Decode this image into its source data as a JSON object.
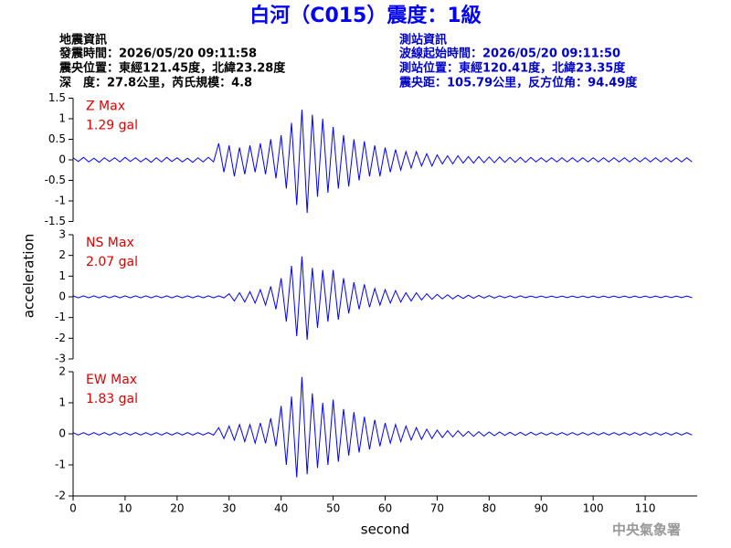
{
  "header": {
    "title": "白河（C015）震度：1級",
    "left": [
      "地震資訊",
      "發震時間：2026/05/20 09:11:58",
      "震央位置：東經121.45度，北緯23.28度",
      "深　度：27.8公里，芮氏規模：4.8"
    ],
    "right": [
      "測站資訊",
      "波線起始時間：2026/05/20 09:11:50",
      "測站位置：東經120.41度，北緯23.35度",
      "震央距：105.79公里，反方位角：94.49度"
    ],
    "footer": "中央氣象署"
  },
  "chart_data": [
    {
      "type": "line",
      "color": "#0000ff",
      "annotations": [
        "Z Max",
        "1.29 gal"
      ],
      "annotation_color": "#e00000",
      "xlim": [
        0,
        120
      ],
      "ylim": [
        -1.5,
        1.5
      ],
      "yticks": [
        -1.5,
        -1,
        -0.5,
        0,
        0.5,
        1,
        1.5
      ],
      "x": [
        0,
        1,
        2,
        3,
        4,
        5,
        6,
        7,
        8,
        9,
        10,
        11,
        12,
        13,
        14,
        15,
        16,
        17,
        18,
        19,
        20,
        21,
        22,
        23,
        24,
        25,
        26,
        27,
        28,
        29,
        30,
        31,
        32,
        33,
        34,
        35,
        36,
        37,
        38,
        39,
        40,
        41,
        42,
        43,
        44,
        45,
        46,
        47,
        48,
        49,
        50,
        51,
        52,
        53,
        54,
        55,
        56,
        57,
        58,
        59,
        60,
        61,
        62,
        63,
        64,
        65,
        66,
        67,
        68,
        69,
        70,
        71,
        72,
        73,
        74,
        75,
        76,
        77,
        78,
        79,
        80,
        81,
        82,
        83,
        84,
        85,
        86,
        87,
        88,
        89,
        90,
        91,
        92,
        93,
        94,
        95,
        96,
        97,
        98,
        99,
        100,
        101,
        102,
        103,
        104,
        105,
        106,
        107,
        108,
        109,
        110,
        111,
        112,
        113,
        114,
        115,
        116,
        117,
        118,
        119
      ],
      "values": [
        0.05,
        -0.04,
        0.06,
        -0.05,
        0.04,
        -0.06,
        0.05,
        -0.04,
        0.05,
        -0.05,
        0.06,
        -0.04,
        0.05,
        -0.05,
        0.04,
        -0.06,
        0.05,
        -0.05,
        0.06,
        -0.04,
        0.05,
        -0.05,
        0.04,
        -0.06,
        0.05,
        -0.05,
        0.06,
        -0.05,
        0.4,
        -0.3,
        0.35,
        -0.4,
        0.3,
        -0.35,
        0.35,
        -0.3,
        0.4,
        -0.35,
        0.5,
        -0.45,
        0.6,
        -0.7,
        0.9,
        -1.1,
        1.22,
        -1.29,
        1.1,
        -0.9,
        1.0,
        -0.8,
        0.8,
        -0.7,
        0.6,
        -0.65,
        0.5,
        -0.5,
        0.45,
        -0.4,
        0.35,
        -0.4,
        0.3,
        -0.3,
        0.25,
        -0.25,
        0.2,
        -0.2,
        0.2,
        -0.15,
        0.15,
        -0.15,
        0.12,
        -0.1,
        0.1,
        -0.1,
        0.1,
        -0.08,
        0.08,
        -0.08,
        0.08,
        -0.07,
        0.07,
        -0.07,
        0.07,
        -0.06,
        0.06,
        -0.06,
        0.06,
        -0.06,
        0.06,
        -0.05,
        0.05,
        -0.05,
        0.05,
        -0.05,
        0.05,
        -0.05,
        0.05,
        -0.05,
        0.05,
        -0.05,
        0.05,
        -0.05,
        0.05,
        -0.05,
        0.05,
        -0.05,
        0.05,
        -0.05,
        0.05,
        -0.05,
        0.05,
        -0.05,
        0.05,
        -0.05,
        0.05,
        -0.05,
        0.05,
        -0.05,
        0.05,
        -0.05
      ]
    },
    {
      "type": "line",
      "color": "#0000ff",
      "annotations": [
        "NS Max",
        "2.07 gal"
      ],
      "annotation_color": "#e00000",
      "ylabel": "acceleration",
      "xlim": [
        0,
        120
      ],
      "ylim": [
        -3,
        3
      ],
      "yticks": [
        -3,
        -2,
        -1,
        0,
        1,
        2,
        3
      ],
      "x": [
        0,
        1,
        2,
        3,
        4,
        5,
        6,
        7,
        8,
        9,
        10,
        11,
        12,
        13,
        14,
        15,
        16,
        17,
        18,
        19,
        20,
        21,
        22,
        23,
        24,
        25,
        26,
        27,
        28,
        29,
        30,
        31,
        32,
        33,
        34,
        35,
        36,
        37,
        38,
        39,
        40,
        41,
        42,
        43,
        44,
        45,
        46,
        47,
        48,
        49,
        50,
        51,
        52,
        53,
        54,
        55,
        56,
        57,
        58,
        59,
        60,
        61,
        62,
        63,
        64,
        65,
        66,
        67,
        68,
        69,
        70,
        71,
        72,
        73,
        74,
        75,
        76,
        77,
        78,
        79,
        80,
        81,
        82,
        83,
        84,
        85,
        86,
        87,
        88,
        89,
        90,
        91,
        92,
        93,
        94,
        95,
        96,
        97,
        98,
        99,
        100,
        101,
        102,
        103,
        104,
        105,
        106,
        107,
        108,
        109,
        110,
        111,
        112,
        113,
        114,
        115,
        116,
        117,
        118,
        119
      ],
      "values": [
        0.05,
        -0.05,
        0.05,
        -0.05,
        0.05,
        -0.05,
        0.05,
        -0.05,
        0.05,
        -0.05,
        0.05,
        -0.05,
        0.05,
        -0.05,
        0.05,
        -0.05,
        0.05,
        -0.05,
        0.05,
        -0.05,
        0.05,
        -0.05,
        0.05,
        -0.05,
        0.05,
        -0.05,
        0.05,
        -0.05,
        0.05,
        -0.05,
        0.15,
        -0.2,
        0.2,
        -0.25,
        0.25,
        -0.3,
        0.35,
        -0.4,
        0.5,
        -0.6,
        0.9,
        -1.2,
        1.5,
        -1.9,
        1.95,
        -2.07,
        1.4,
        -1.5,
        1.3,
        -1.2,
        1.3,
        -1.1,
        0.9,
        -0.8,
        0.7,
        -0.6,
        0.6,
        -0.5,
        0.4,
        -0.4,
        0.35,
        -0.3,
        0.3,
        -0.25,
        0.2,
        -0.2,
        0.2,
        -0.15,
        0.15,
        -0.12,
        0.12,
        -0.1,
        0.1,
        -0.1,
        0.08,
        -0.08,
        0.08,
        -0.07,
        0.07,
        -0.06,
        0.06,
        -0.06,
        0.05,
        -0.05,
        0.05,
        -0.05,
        0.05,
        -0.04,
        0.04,
        -0.04,
        0.04,
        -0.04,
        0.04,
        -0.04,
        0.04,
        -0.04,
        0.04,
        -0.04,
        0.04,
        -0.04,
        0.04,
        -0.04,
        0.04,
        -0.04,
        0.04,
        -0.04,
        0.04,
        -0.04,
        0.04,
        -0.04,
        0.04,
        -0.04,
        0.04,
        -0.04,
        0.04,
        -0.04,
        0.04,
        -0.04,
        0.04,
        -0.04
      ]
    },
    {
      "type": "line",
      "color": "#0000ff",
      "annotations": [
        "EW Max",
        "1.83 gal"
      ],
      "annotation_color": "#e00000",
      "xlabel": "second",
      "xlim": [
        0,
        120
      ],
      "xticks": [
        0,
        10,
        20,
        30,
        40,
        50,
        60,
        70,
        80,
        90,
        100,
        110
      ],
      "ylim": [
        -2,
        2
      ],
      "yticks": [
        -2,
        -1,
        0,
        1,
        2
      ],
      "x": [
        0,
        1,
        2,
        3,
        4,
        5,
        6,
        7,
        8,
        9,
        10,
        11,
        12,
        13,
        14,
        15,
        16,
        17,
        18,
        19,
        20,
        21,
        22,
        23,
        24,
        25,
        26,
        27,
        28,
        29,
        30,
        31,
        32,
        33,
        34,
        35,
        36,
        37,
        38,
        39,
        40,
        41,
        42,
        43,
        44,
        45,
        46,
        47,
        48,
        49,
        50,
        51,
        52,
        53,
        54,
        55,
        56,
        57,
        58,
        59,
        60,
        61,
        62,
        63,
        64,
        65,
        66,
        67,
        68,
        69,
        70,
        71,
        72,
        73,
        74,
        75,
        76,
        77,
        78,
        79,
        80,
        81,
        82,
        83,
        84,
        85,
        86,
        87,
        88,
        89,
        90,
        91,
        92,
        93,
        94,
        95,
        96,
        97,
        98,
        99,
        100,
        101,
        102,
        103,
        104,
        105,
        106,
        107,
        108,
        109,
        110,
        111,
        112,
        113,
        114,
        115,
        116,
        117,
        118,
        119
      ],
      "values": [
        0.04,
        -0.04,
        0.04,
        -0.04,
        0.04,
        -0.04,
        0.04,
        -0.04,
        0.04,
        -0.04,
        0.04,
        -0.04,
        0.04,
        -0.04,
        0.04,
        -0.04,
        0.04,
        -0.04,
        0.04,
        -0.04,
        0.04,
        -0.04,
        0.04,
        -0.04,
        0.04,
        -0.04,
        0.04,
        -0.04,
        0.2,
        -0.15,
        0.25,
        -0.2,
        0.3,
        -0.25,
        0.3,
        -0.3,
        0.35,
        -0.3,
        0.5,
        -0.4,
        0.9,
        -1.0,
        1.2,
        -1.4,
        1.83,
        -1.3,
        1.3,
        -1.1,
        1.0,
        -1.0,
        1.1,
        -0.9,
        0.8,
        -0.7,
        0.7,
        -0.6,
        0.55,
        -0.5,
        0.45,
        -0.4,
        0.35,
        -0.3,
        0.3,
        -0.25,
        0.25,
        -0.2,
        0.2,
        -0.18,
        0.15,
        -0.15,
        0.12,
        -0.12,
        0.1,
        -0.1,
        0.1,
        -0.08,
        0.08,
        -0.08,
        0.07,
        -0.07,
        0.06,
        -0.06,
        0.06,
        -0.05,
        0.05,
        -0.05,
        0.05,
        -0.05,
        0.05,
        -0.04,
        0.04,
        -0.04,
        0.04,
        -0.04,
        0.04,
        -0.04,
        0.04,
        -0.04,
        0.04,
        -0.04,
        0.04,
        -0.04,
        0.04,
        -0.04,
        0.04,
        -0.04,
        0.04,
        -0.04,
        0.04,
        -0.04,
        0.04,
        -0.04,
        0.04,
        -0.04,
        0.04,
        -0.04,
        0.04,
        -0.04,
        0.04,
        -0.04
      ]
    }
  ]
}
